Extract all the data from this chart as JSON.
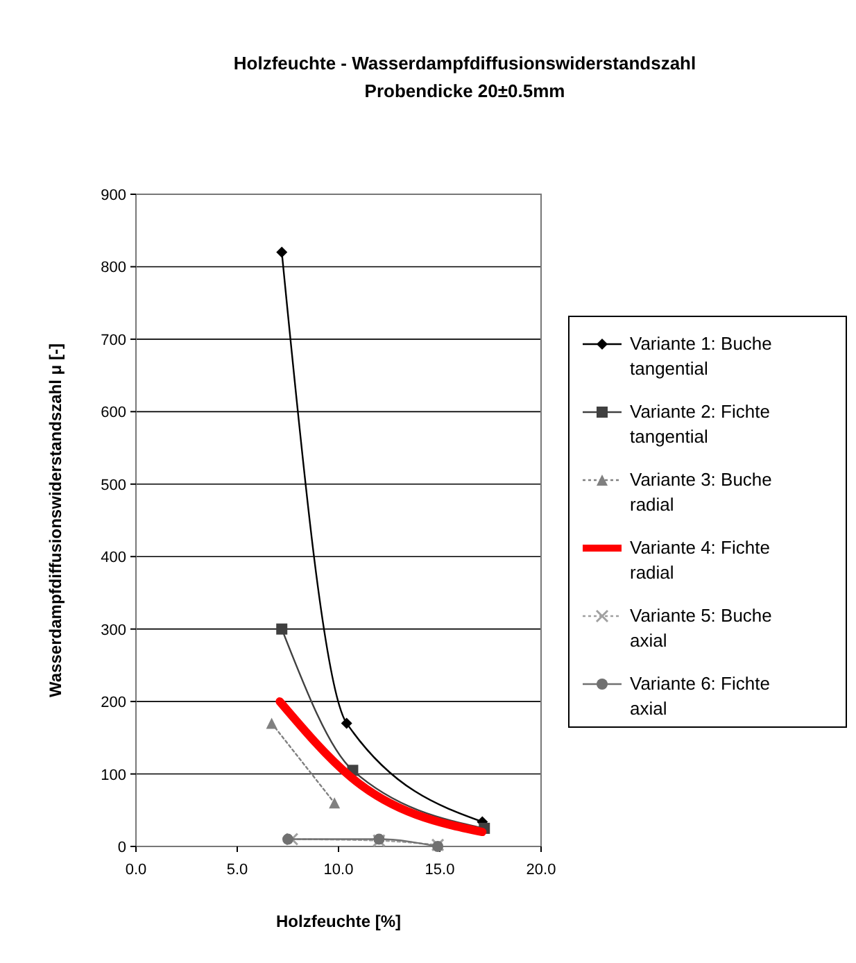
{
  "chart_data": {
    "type": "line",
    "title": "Holzfeuchte - Wasserdampfdiffusionswiderstandszahl\nProbendicke 20±0.5mm",
    "xlabel": "Holzfeuchte [%]",
    "ylabel": "Wasserdampfdiffusionswiderstandszahl μ [-]",
    "xlim": [
      0,
      20
    ],
    "xticks": [
      {
        "value": 0,
        "label": "0.0"
      },
      {
        "value": 5,
        "label": "5.0"
      },
      {
        "value": 10,
        "label": "10.0"
      },
      {
        "value": 15,
        "label": "15.0"
      },
      {
        "value": 20,
        "label": "20.0"
      }
    ],
    "ylim": [
      0,
      900
    ],
    "yticks": [
      0,
      100,
      200,
      300,
      400,
      500,
      600,
      700,
      800,
      900
    ],
    "grid": "y",
    "legend": "right",
    "series": [
      {
        "name": "Variante 1: Buche tangential",
        "color": "#000000",
        "marker": "diamond",
        "line_style": "solid",
        "x": [
          7.2,
          10.4,
          17.1
        ],
        "values": [
          820,
          170,
          34
        ]
      },
      {
        "name": "Variante 2: Fichte tangential",
        "color": "#404040",
        "marker": "square",
        "line_style": "solid",
        "x": [
          7.2,
          10.7,
          17.2
        ],
        "values": [
          300,
          105,
          25
        ]
      },
      {
        "name": "Variante 3: Buche radial",
        "color": "#808080",
        "marker": "triangle",
        "line_style": "dotted",
        "x": [
          6.7,
          9.8
        ],
        "values": [
          170,
          60
        ]
      },
      {
        "name": "Variante 4: Fichte radial",
        "color": "#ff0000",
        "marker": "none",
        "line_style": "solid",
        "x": [
          7.1,
          10.6,
          17.1
        ],
        "values": [
          200,
          96,
          20
        ]
      },
      {
        "name": "Variante 5: Buche axial",
        "color": "#a0a0a0",
        "marker": "cross",
        "line_style": "dotted",
        "x": [
          7.7,
          12,
          14.9
        ],
        "values": [
          10,
          8,
          2
        ]
      },
      {
        "name": "Variante 6: Fichte axial",
        "color": "#707070",
        "marker": "circle",
        "line_style": "solid",
        "x": [
          7.5,
          12,
          14.9
        ],
        "values": [
          10,
          10,
          0
        ]
      }
    ]
  }
}
